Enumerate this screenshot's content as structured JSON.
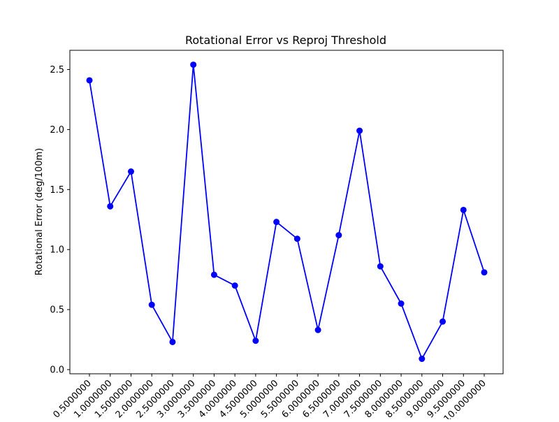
{
  "chart_data": {
    "type": "line",
    "title": "Rotational Error vs Reproj Threshold",
    "xlabel": "",
    "ylabel": "Rotational Error (deg/100m)",
    "categories": [
      "0.5000000",
      "1.0000000",
      "1.5000000",
      "2.0000000",
      "2.5000000",
      "3.0000000",
      "3.5000000",
      "4.0000000",
      "4.5000000",
      "5.0000000",
      "5.5000000",
      "6.0000000",
      "6.5000000",
      "7.0000000",
      "7.5000000",
      "8.0000000",
      "8.5000000",
      "9.0000000",
      "9.5000000",
      "10.0000000"
    ],
    "series": [
      {
        "values": [
          2.41,
          1.36,
          1.65,
          0.54,
          0.23,
          2.54,
          0.79,
          0.7,
          0.24,
          1.23,
          1.09,
          0.33,
          1.12,
          1.99,
          0.86,
          0.55,
          0.09,
          0.4,
          1.33,
          0.81
        ],
        "color": "#0000ff",
        "marker": "circle"
      }
    ],
    "ylim": [
      -0.035,
      2.66
    ],
    "yticks": [
      0.0,
      0.5,
      1.0,
      1.5,
      2.0,
      2.5
    ],
    "ytick_labels": [
      "0.0",
      "0.5",
      "1.0",
      "1.5",
      "2.0",
      "2.5"
    ],
    "grid": false,
    "legend": "none"
  }
}
